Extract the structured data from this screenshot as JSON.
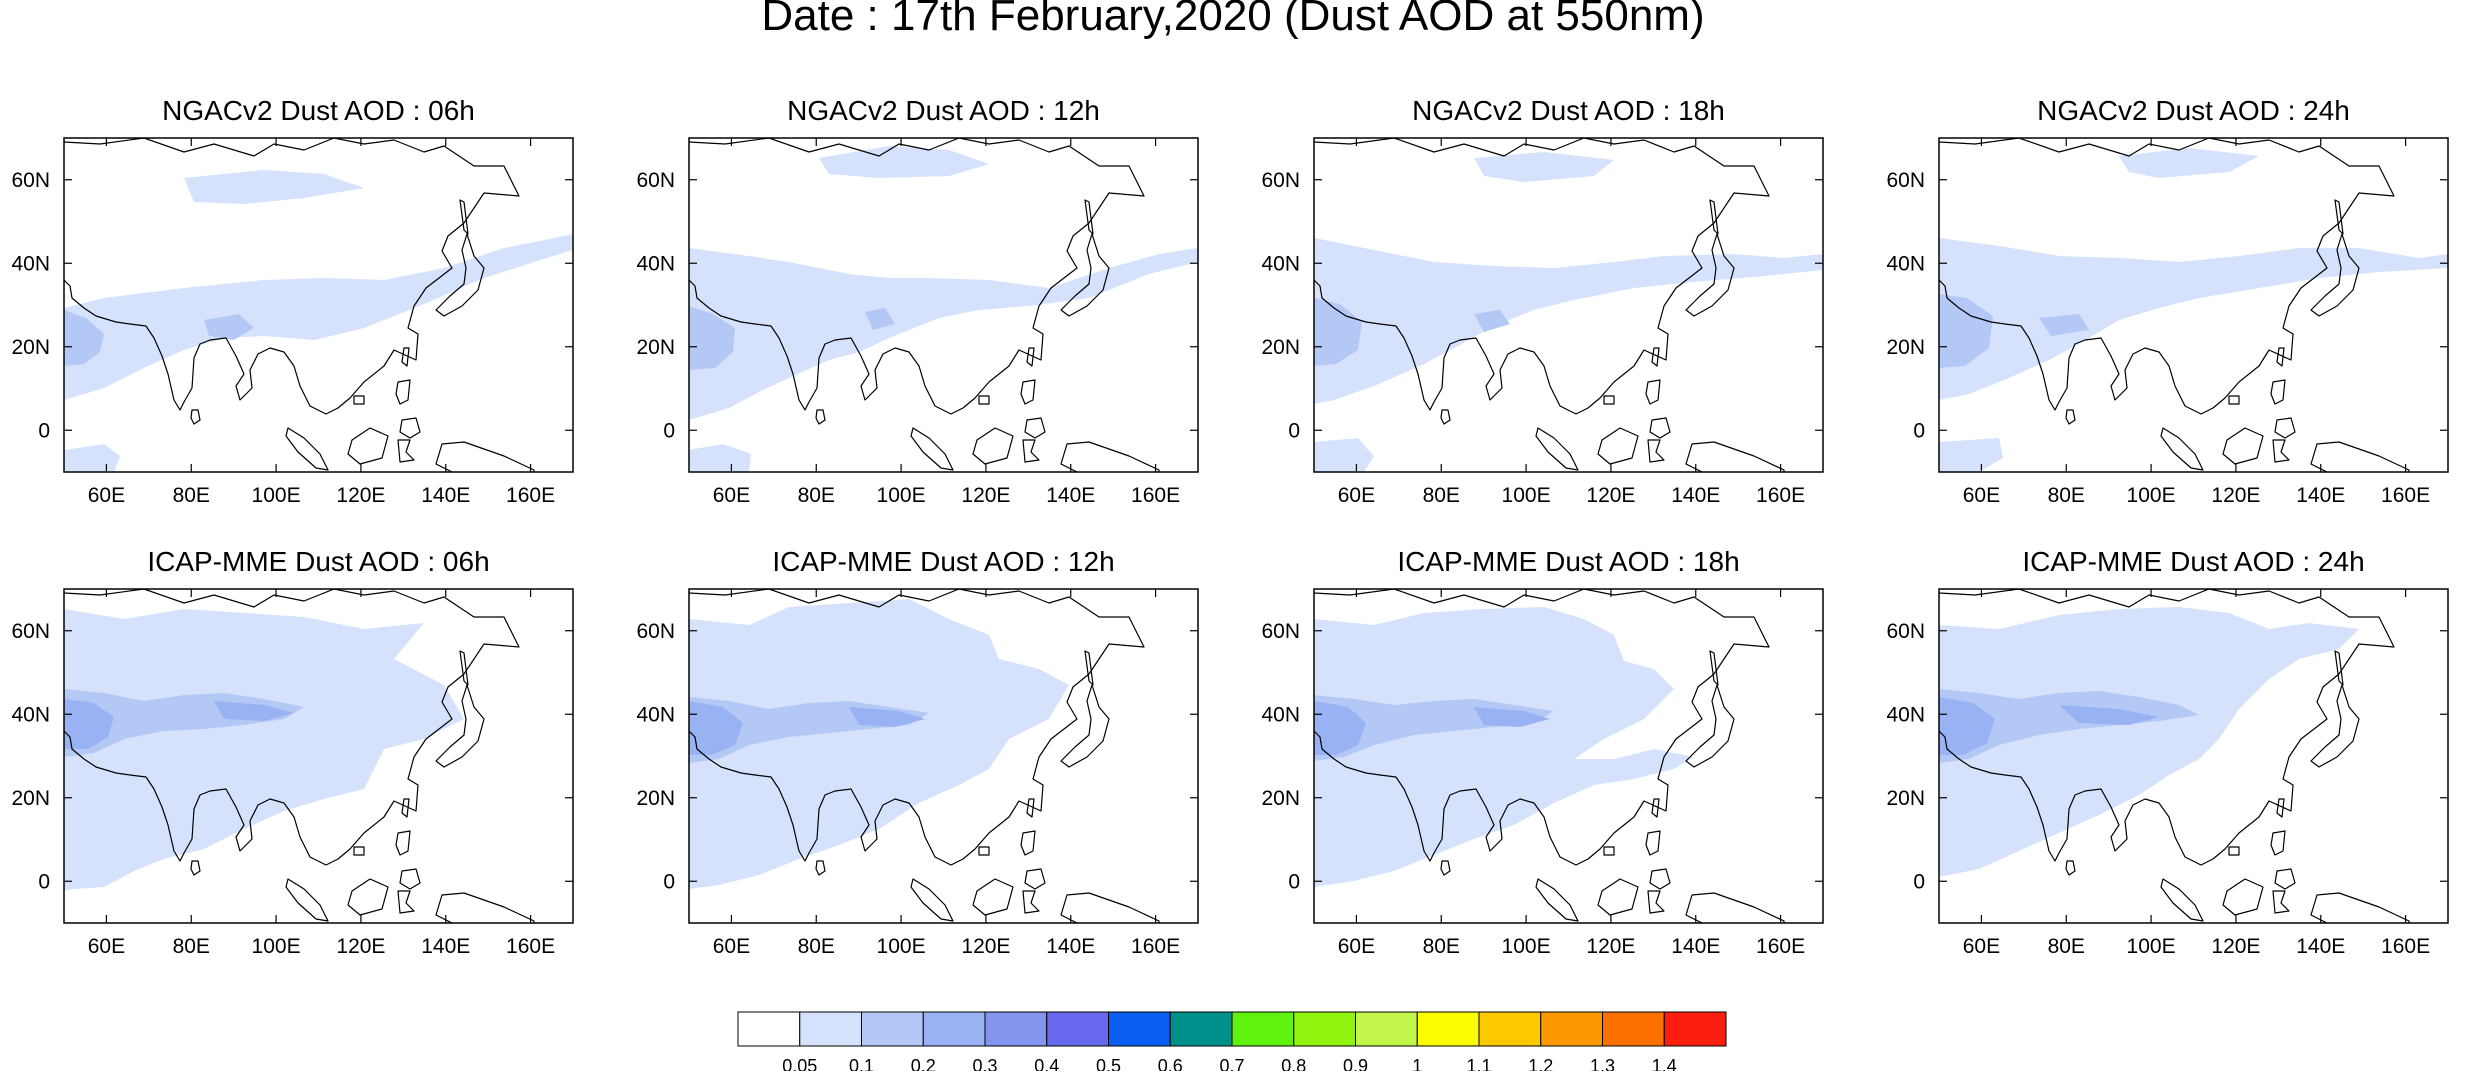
{
  "title": "Date : 17th February,2020 (Dust AOD at 550nm)",
  "map_extent": {
    "lon_range": [
      50,
      170
    ],
    "lat_range": [
      -10,
      70
    ]
  },
  "x_ticks": [
    {
      "value": 60,
      "label": "60E"
    },
    {
      "value": 80,
      "label": "80E"
    },
    {
      "value": 100,
      "label": "100E"
    },
    {
      "value": 120,
      "label": "120E"
    },
    {
      "value": 140,
      "label": "140E"
    },
    {
      "value": 160,
      "label": "160E"
    }
  ],
  "y_ticks": [
    {
      "value": 60,
      "label": "60N"
    },
    {
      "value": 40,
      "label": "40N"
    },
    {
      "value": 20,
      "label": "20N"
    },
    {
      "value": 0,
      "label": "0"
    }
  ],
  "panels": [
    {
      "title": "NGACv2 Dust AOD : 06h"
    },
    {
      "title": "NGACv2 Dust AOD : 12h"
    },
    {
      "title": "NGACv2 Dust AOD : 18h"
    },
    {
      "title": "NGACv2 Dust AOD : 24h"
    },
    {
      "title": "ICAP-MME Dust AOD : 06h"
    },
    {
      "title": "ICAP-MME Dust AOD : 12h"
    },
    {
      "title": "ICAP-MME Dust AOD : 18h"
    },
    {
      "title": "ICAP-MME Dust AOD : 24h"
    }
  ],
  "colorbar": {
    "boundaries": [
      "0.05",
      "0.1",
      "0.2",
      "0.3",
      "0.4",
      "0.5",
      "0.6",
      "0.7",
      "0.8",
      "0.9",
      "1",
      "1.1",
      "1.2",
      "1.3",
      "1.4"
    ],
    "colors": [
      "#ffffff",
      "#d6e2fb",
      "#b4c8f6",
      "#98b2f3",
      "#8594ef",
      "#6868ee",
      "#0a5ff0",
      "#00908c",
      "#5ff20e",
      "#90f40e",
      "#c2f64a",
      "#fcfc00",
      "#fcc800",
      "#fc9800",
      "#fc7000",
      "#fc1e0e"
    ]
  }
}
